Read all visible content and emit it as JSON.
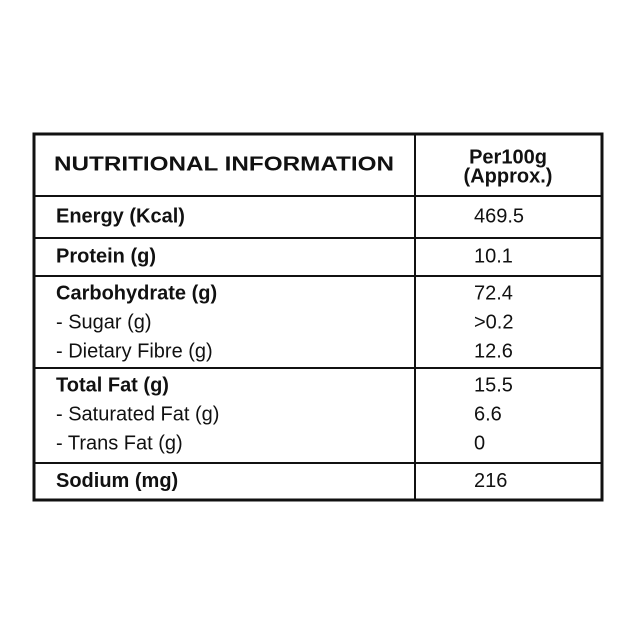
{
  "header": {
    "title": "NUTRITIONAL INFORMATION",
    "column": "Per100g",
    "note": "(Approx.)"
  },
  "rows": [
    [
      {
        "label": "Energy (Kcal)",
        "value": "469.5"
      }
    ],
    [
      {
        "label": "Protein (g)",
        "value": "10.1"
      }
    ],
    [
      {
        "label": "Carbohydrate (g)",
        "value": "72.4"
      },
      {
        "label": "- Sugar (g)",
        "value": ">0.2"
      },
      {
        "label": "- Dietary Fibre (g)",
        "value": "12.6"
      }
    ],
    [
      {
        "label": "Total Fat (g)",
        "value": "15.5"
      },
      {
        "label": "- Saturated Fat (g)",
        "value": "6.6"
      },
      {
        "label": "- Trans Fat (g)",
        "value": "0"
      }
    ],
    [
      {
        "label": "Sodium (mg)",
        "value": "216"
      }
    ]
  ]
}
